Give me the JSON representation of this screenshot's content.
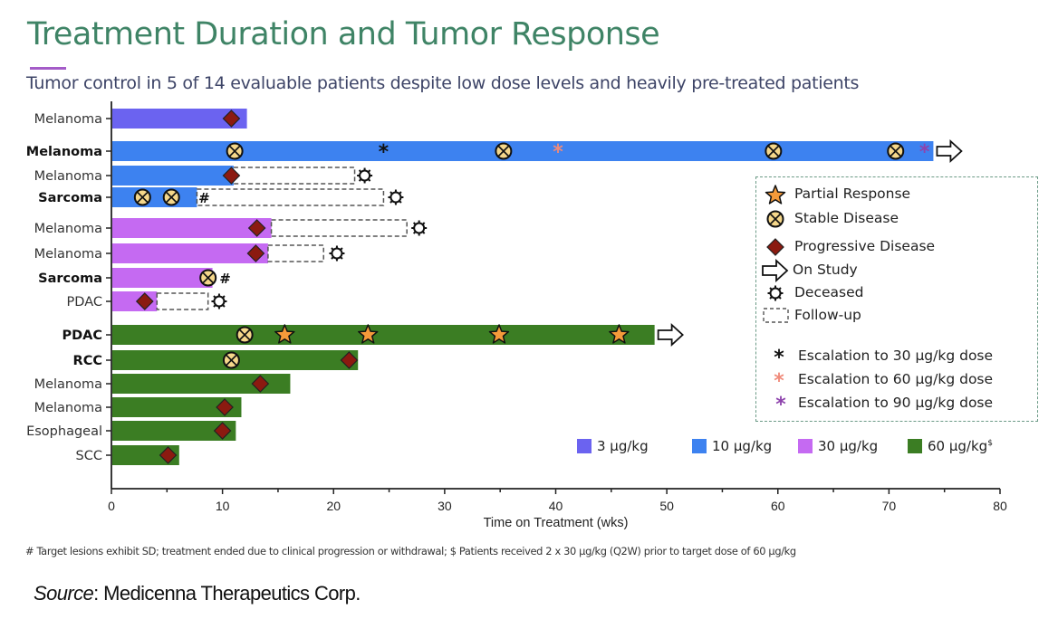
{
  "header": {
    "title": "Treatment Duration and Tumor Response",
    "subtitle": "Tumor control in 5 of 14 evaluable patients despite low dose levels and heavily pre-treated patients"
  },
  "colors": {
    "title": "#3f8466",
    "accent": "#a45cc8",
    "dose_3": "#6b63f0",
    "dose_10": "#3d82f0",
    "dose_30": "#c56af2",
    "dose_60": "#3b7d23",
    "partial_response": "#f59a3a",
    "stable_disease": "#f5d78a",
    "progressive_disease": "#8b1a10",
    "escalation_30": "#111111",
    "escalation_60": "#f08a7a",
    "escalation_90": "#8e44ad"
  },
  "chart_data": {
    "type": "bar",
    "orientation": "horizontal",
    "title": "Treatment Duration and Tumor Response",
    "xlabel": "Time on Treatment (wks)",
    "ylabel": "",
    "xlim": [
      0,
      80
    ],
    "xticks": [
      0,
      10,
      20,
      30,
      40,
      50,
      60,
      70,
      80
    ],
    "grid": false,
    "dose_groups": [
      {
        "key": "3",
        "label": "3 µg/kg",
        "color": "#6b63f0"
      },
      {
        "key": "10",
        "label": "10 µg/kg",
        "color": "#3d82f0"
      },
      {
        "key": "30",
        "label": "30 µg/kg",
        "color": "#c56af2"
      },
      {
        "key": "60",
        "label": "60 µg/kg",
        "label_sup": "$",
        "color": "#3b7d23"
      }
    ],
    "patients": [
      {
        "label": "Melanoma",
        "bold": false,
        "dose": "3",
        "duration": 12.2,
        "PD": [
          10.8
        ],
        "SD": [],
        "PR": [],
        "esc30": [],
        "esc60": [],
        "esc90": [],
        "hash": false,
        "on_study": false,
        "followup_end": null,
        "deceased": null
      },
      {
        "label": "Melanoma",
        "bold": true,
        "dose": "10",
        "duration": 74.0,
        "PD": [],
        "SD": [
          11.1,
          35.3,
          59.6,
          70.6
        ],
        "PR": [],
        "esc30": [
          24.5
        ],
        "esc60": [
          40.2
        ],
        "esc90": [
          73.2
        ],
        "hash": false,
        "on_study": true,
        "followup_end": null,
        "deceased": null
      },
      {
        "label": "Melanoma",
        "bold": false,
        "dose": "10",
        "duration": 11.0,
        "PD": [
          10.8
        ],
        "SD": [],
        "PR": [],
        "esc30": [],
        "esc60": [],
        "esc90": [],
        "hash": false,
        "on_study": false,
        "followup_end": 21.9,
        "deceased": 22.8
      },
      {
        "label": "Sarcoma",
        "bold": true,
        "dose": "10",
        "duration": 7.7,
        "PD": [],
        "SD": [
          2.8,
          5.4
        ],
        "PR": [],
        "esc30": [],
        "esc60": [],
        "esc90": [],
        "hash": true,
        "on_study": false,
        "followup_end": 24.5,
        "deceased": 25.6
      },
      {
        "label": "Melanoma",
        "bold": false,
        "dose": "30",
        "duration": 14.4,
        "PD": [
          13.1
        ],
        "SD": [],
        "PR": [],
        "esc30": [],
        "esc60": [],
        "esc90": [],
        "hash": false,
        "on_study": false,
        "followup_end": 26.6,
        "deceased": 27.7
      },
      {
        "label": "Melanoma",
        "bold": false,
        "dose": "30",
        "duration": 14.1,
        "PD": [
          13.0
        ],
        "SD": [],
        "PR": [],
        "esc30": [],
        "esc60": [],
        "esc90": [],
        "hash": false,
        "on_study": false,
        "followup_end": 19.1,
        "deceased": 20.3
      },
      {
        "label": "Sarcoma",
        "bold": true,
        "dose": "30",
        "duration": 9.1,
        "PD": [],
        "SD": [
          8.7
        ],
        "PR": [],
        "esc30": [],
        "esc60": [],
        "esc90": [],
        "hash": true,
        "on_study": false,
        "followup_end": null,
        "deceased": null
      },
      {
        "label": "PDAC",
        "bold": false,
        "dose": "30",
        "duration": 4.1,
        "PD": [
          3.0
        ],
        "SD": [],
        "PR": [],
        "esc30": [],
        "esc60": [],
        "esc90": [],
        "hash": false,
        "on_study": false,
        "followup_end": 8.7,
        "deceased": 9.7
      },
      {
        "label": "PDAC",
        "bold": true,
        "dose": "60",
        "duration": 48.9,
        "PD": [],
        "SD": [
          12.0
        ],
        "PR": [
          15.6,
          23.1,
          34.9,
          45.7
        ],
        "esc30": [],
        "esc60": [],
        "esc90": [],
        "hash": false,
        "on_study": true,
        "followup_end": null,
        "deceased": null
      },
      {
        "label": "RCC",
        "bold": true,
        "dose": "60",
        "duration": 22.2,
        "PD": [
          21.4
        ],
        "SD": [
          10.8
        ],
        "PR": [],
        "esc30": [],
        "esc60": [],
        "esc90": [],
        "hash": false,
        "on_study": false,
        "followup_end": null,
        "deceased": null
      },
      {
        "label": "Melanoma",
        "bold": false,
        "dose": "60",
        "duration": 16.1,
        "PD": [
          13.4
        ],
        "SD": [],
        "PR": [],
        "esc30": [],
        "esc60": [],
        "esc90": [],
        "hash": false,
        "on_study": false,
        "followup_end": null,
        "deceased": null
      },
      {
        "label": "Melanoma",
        "bold": false,
        "dose": "60",
        "duration": 11.7,
        "PD": [
          10.2
        ],
        "SD": [],
        "PR": [],
        "esc30": [],
        "esc60": [],
        "esc90": [],
        "hash": false,
        "on_study": false,
        "followup_end": null,
        "deceased": null
      },
      {
        "label": "Esophageal",
        "bold": false,
        "dose": "60",
        "duration": 11.2,
        "PD": [
          10.0
        ],
        "SD": [],
        "PR": [],
        "esc30": [],
        "esc60": [],
        "esc90": [],
        "hash": false,
        "on_study": false,
        "followup_end": null,
        "deceased": null
      },
      {
        "label": "SCC",
        "bold": false,
        "dose": "60",
        "duration": 6.1,
        "PD": [
          5.1
        ],
        "SD": [],
        "PR": [],
        "esc30": [],
        "esc60": [],
        "esc90": [],
        "hash": false,
        "on_study": false,
        "followup_end": null,
        "deceased": null
      }
    ],
    "legend": {
      "placement": "right",
      "items": [
        {
          "icon": "star-icon",
          "label": "Partial Response"
        },
        {
          "icon": "stable-disease-icon",
          "label": "Stable Disease"
        },
        {
          "icon": "diamond-icon",
          "label": "Progressive Disease"
        },
        {
          "icon": "arrow-right-icon",
          "label": "On Study"
        },
        {
          "icon": "deceased-icon",
          "label": "Deceased"
        },
        {
          "icon": "dashed-box-icon",
          "label": "Follow-up"
        },
        {
          "icon": "asterisk-black-icon",
          "label": "Escalation to 30 µg/kg dose"
        },
        {
          "icon": "asterisk-pink-icon",
          "label": "Escalation to 60 µg/kg dose"
        },
        {
          "icon": "asterisk-purple-icon",
          "label": "Escalation to 90 µg/kg dose"
        }
      ]
    },
    "hash_symbol": "#"
  },
  "footnote": "# Target lesions exhibit SD; treatment ended due to clinical progression or withdrawal; $ Patients received 2 x 30 µg/kg (Q2W) prior to target dose of 60 µg/kg",
  "source": {
    "label": "Source",
    "text": ": Medicenna Therapeutics Corp."
  }
}
